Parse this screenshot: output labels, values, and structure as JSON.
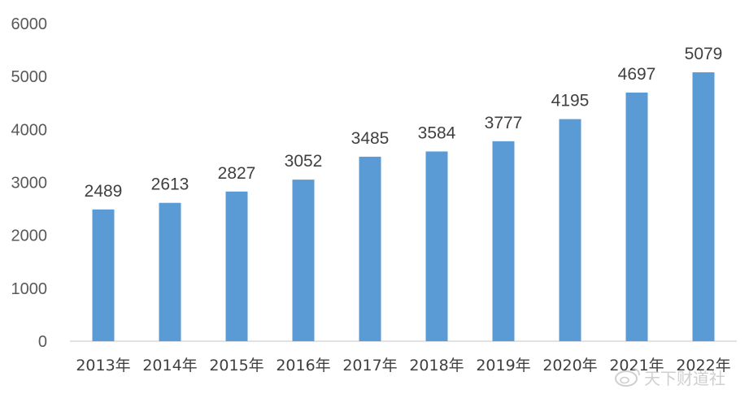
{
  "chart_data": {
    "type": "bar",
    "categories": [
      "2013年",
      "2014年",
      "2015年",
      "2016年",
      "2017年",
      "2018年",
      "2019年",
      "2020年",
      "2021年",
      "2022年"
    ],
    "values": [
      2489,
      2613,
      2827,
      3052,
      3485,
      3584,
      3777,
      4195,
      4697,
      5079
    ],
    "ylim": [
      0,
      6000
    ],
    "yticks": [
      0,
      1000,
      2000,
      3000,
      4000,
      5000,
      6000
    ],
    "grid": false,
    "legend": "none",
    "bar_color": "#5B9BD5",
    "data_labels": true
  },
  "watermark": {
    "text": "天下财道社",
    "icon": "weibo-icon"
  }
}
